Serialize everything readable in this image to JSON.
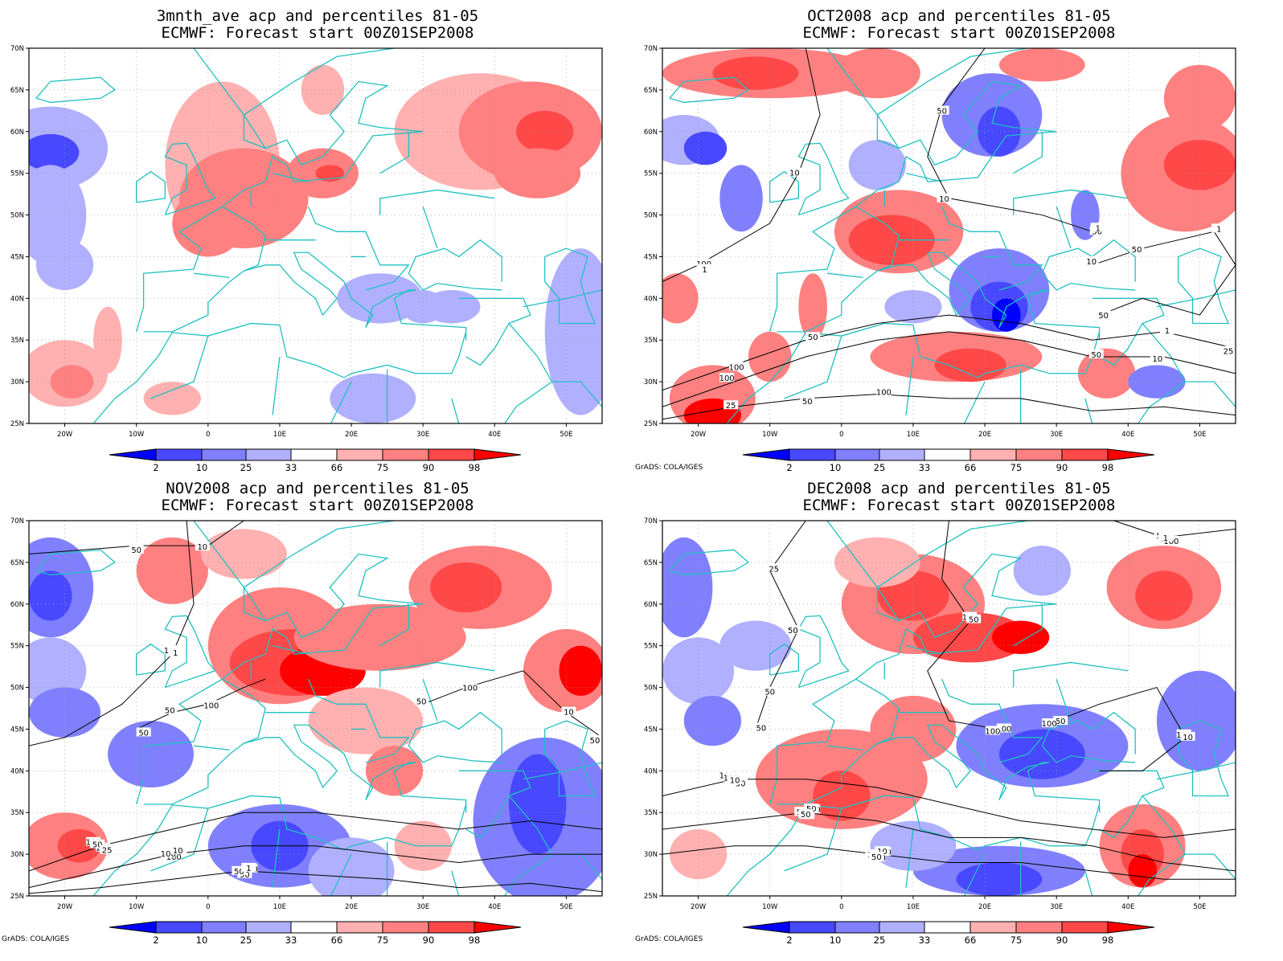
{
  "colors": {
    "p2": "#0000ff",
    "p10": "#4848ff",
    "p25": "#8080ff",
    "p33": "#b0b0ff",
    "p66": "#ffb0b0",
    "p75": "#ff8080",
    "p90": "#ff4848",
    "p98": "#ff0000",
    "coast": "#20c0c0",
    "contour": "#000000",
    "grid": "#999999"
  },
  "axes": {
    "lat_labels": [
      "70N",
      "65N",
      "60N",
      "55N",
      "50N",
      "45N",
      "40N",
      "35N",
      "30N",
      "25N"
    ],
    "lon_labels": [
      "20W",
      "10W",
      "0",
      "10E",
      "20E",
      "30E",
      "40E",
      "50E"
    ]
  },
  "colorbar": {
    "labels": [
      "2",
      "10",
      "25",
      "33",
      "66",
      "75",
      "90",
      "98"
    ]
  },
  "credit": "GrADS: COLA/IGES",
  "panels": [
    {
      "title1": "3mnth_ave acp and percentiles 81-05",
      "title2": "ECMWF: Forecast start 00Z01SEP2008"
    },
    {
      "title1": "OCT2008 acp and percentiles 81-05",
      "title2": "ECMWF: Forecast start 00Z01SEP2008"
    },
    {
      "title1": "NOV2008 acp and percentiles 81-05",
      "title2": "ECMWF: Forecast start 00Z01SEP2008"
    },
    {
      "title1": "DEC2008 acp and percentiles 81-05",
      "title2": "ECMWF: Forecast start 00Z01SEP2008"
    }
  ],
  "contour_labels": {
    "oct": [
      "100",
      "50",
      "100",
      "100",
      "50",
      "50",
      "100",
      "100",
      "50",
      "50",
      "50",
      "10",
      "50",
      "25",
      "25",
      "10",
      "10",
      "50",
      "10",
      "25",
      "10",
      "1",
      "1",
      "1",
      "50",
      "1"
    ],
    "nov": [
      "100",
      "50",
      "100",
      "50",
      "50",
      "100",
      "100",
      "100",
      "100",
      "50",
      "50",
      "100",
      "50",
      "50",
      "50",
      "100",
      "50",
      "10",
      "25",
      "50",
      "50",
      "25",
      "10",
      "1",
      "1",
      "1",
      "10"
    ],
    "dec": [
      "100",
      "100",
      "100",
      "50",
      "100",
      "50",
      "100",
      "50",
      "50",
      "100",
      "50",
      "100",
      "100",
      "50",
      "100",
      "50",
      "10",
      "50",
      "100",
      "100",
      "100",
      "50",
      "50",
      "10",
      "25",
      "50",
      "10",
      "1",
      "10",
      "50",
      "50",
      "25"
    ]
  }
}
